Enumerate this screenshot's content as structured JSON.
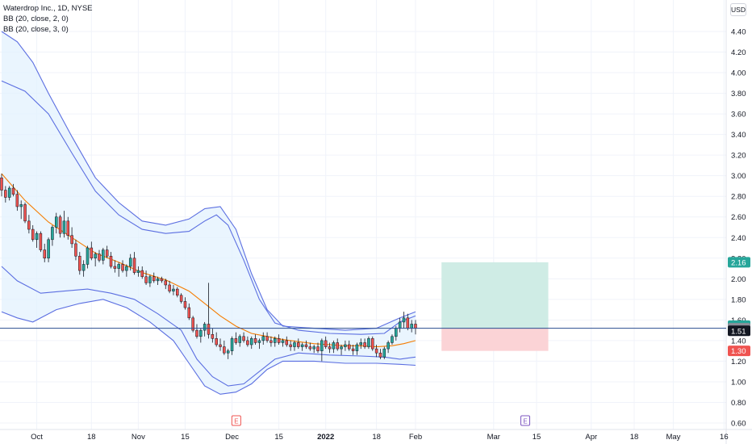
{
  "legend": {
    "title": "Waterdrop Inc., 1D, NYSE",
    "bb1": "BB (20, close, 2, 0)",
    "bb2": "BB (20, close, 3, 0)"
  },
  "currency": "USD",
  "colors": {
    "up": "#26a69a",
    "down": "#ef5350",
    "middle_band": "#f57c00",
    "outer_bands": "#5b6ee1",
    "band_fill": "#e3f2fd",
    "target_zone": "#cfece5",
    "stop_zone": "#fbd3d6",
    "crosshair": "#2a4d8f",
    "grid": "#f0f3fa"
  },
  "price_badges": [
    {
      "label": "2.16",
      "value": 2.16,
      "color": "#26a69a"
    },
    {
      "label": "1.52",
      "value": 1.545,
      "color": "#26a69a"
    },
    {
      "label": "1.52",
      "value": 1.52,
      "color": "#8c8f99"
    },
    {
      "label": "1.51",
      "value": 1.495,
      "color": "#131722"
    },
    {
      "label": "1.30",
      "value": 1.3,
      "color": "#ef5350"
    }
  ],
  "event_markers": [
    {
      "label": "E",
      "date_index": 60,
      "style": "red"
    },
    {
      "label": "E",
      "date_index": 134,
      "style": "purple"
    }
  ],
  "chart_data": {
    "type": "candlestick",
    "title": "Waterdrop Inc., 1D, NYSE",
    "ylim": [
      0.6,
      4.6
    ],
    "y_ticks": [
      "0.60",
      "0.80",
      "1.00",
      "1.20",
      "1.40",
      "1.60",
      "1.80",
      "2.00",
      "2.20",
      "2.40",
      "2.60",
      "2.80",
      "3.00",
      "3.20",
      "3.40",
      "3.60",
      "3.80",
      "4.00",
      "4.20",
      "4.40"
    ],
    "x_ticks": [
      {
        "label": "Oct",
        "index": 9
      },
      {
        "label": "18",
        "index": 23
      },
      {
        "label": "Nov",
        "index": 35
      },
      {
        "label": "15",
        "index": 47
      },
      {
        "label": "Dec",
        "index": 59
      },
      {
        "label": "15",
        "index": 71
      },
      {
        "label": "2022",
        "index": 83
      },
      {
        "label": "18",
        "index": 96
      },
      {
        "label": "Feb",
        "index": 106
      },
      {
        "label": "Mar",
        "index": 126
      },
      {
        "label": "15",
        "index": 137
      },
      {
        "label": "Apr",
        "index": 151
      },
      {
        "label": "18",
        "index": 162
      },
      {
        "label": "May",
        "index": 172
      },
      {
        "label": "16",
        "index": 185
      }
    ],
    "last_price": 1.52,
    "position": {
      "entry": 1.52,
      "target": 2.16,
      "stop": 1.3,
      "start_index": 111,
      "end_index": 140
    },
    "ohlc": [
      [
        0,
        2.98,
        3.02,
        2.8,
        2.86
      ],
      [
        1,
        2.86,
        2.9,
        2.74,
        2.79
      ],
      [
        2,
        2.79,
        2.9,
        2.76,
        2.88
      ],
      [
        3,
        2.88,
        2.92,
        2.8,
        2.82
      ],
      [
        4,
        2.82,
        2.86,
        2.66,
        2.7
      ],
      [
        5,
        2.7,
        2.76,
        2.58,
        2.72
      ],
      [
        6,
        2.72,
        2.74,
        2.54,
        2.56
      ],
      [
        7,
        2.56,
        2.62,
        2.44,
        2.48
      ],
      [
        8,
        2.48,
        2.52,
        2.36,
        2.38
      ],
      [
        9,
        2.38,
        2.46,
        2.3,
        2.44
      ],
      [
        10,
        2.44,
        2.46,
        2.26,
        2.28
      ],
      [
        11,
        2.28,
        2.34,
        2.16,
        2.2
      ],
      [
        12,
        2.2,
        2.4,
        2.16,
        2.38
      ],
      [
        13,
        2.38,
        2.52,
        2.32,
        2.5
      ],
      [
        14,
        2.5,
        2.64,
        2.44,
        2.6
      ],
      [
        15,
        2.6,
        2.62,
        2.4,
        2.44
      ],
      [
        16,
        2.44,
        2.66,
        2.4,
        2.56
      ],
      [
        17,
        2.56,
        2.6,
        2.38,
        2.42
      ],
      [
        18,
        2.42,
        2.5,
        2.3,
        2.34
      ],
      [
        19,
        2.34,
        2.38,
        2.18,
        2.22
      ],
      [
        20,
        2.22,
        2.26,
        2.04,
        2.08
      ],
      [
        21,
        2.08,
        2.18,
        2.02,
        2.14
      ],
      [
        22,
        2.14,
        2.32,
        2.1,
        2.3
      ],
      [
        23,
        2.3,
        2.36,
        2.18,
        2.2
      ],
      [
        24,
        2.2,
        2.26,
        2.12,
        2.24
      ],
      [
        25,
        2.24,
        2.28,
        2.16,
        2.18
      ],
      [
        26,
        2.18,
        2.3,
        2.14,
        2.28
      ],
      [
        27,
        2.28,
        2.32,
        2.2,
        2.22
      ],
      [
        28,
        2.22,
        2.26,
        2.1,
        2.12
      ],
      [
        29,
        2.12,
        2.18,
        2.06,
        2.1
      ],
      [
        30,
        2.1,
        2.16,
        2.02,
        2.14
      ],
      [
        31,
        2.14,
        2.18,
        2.06,
        2.08
      ],
      [
        32,
        2.08,
        2.14,
        2.02,
        2.12
      ],
      [
        33,
        2.12,
        2.24,
        2.08,
        2.2
      ],
      [
        34,
        2.2,
        2.26,
        2.04,
        2.06
      ],
      [
        35,
        2.06,
        2.12,
        2.02,
        2.08
      ],
      [
        36,
        2.08,
        2.12,
        2.0,
        2.02
      ],
      [
        37,
        2.02,
        2.08,
        1.94,
        1.96
      ],
      [
        38,
        1.96,
        2.04,
        1.92,
        2.02
      ],
      [
        39,
        2.02,
        2.06,
        1.96,
        1.98
      ],
      [
        40,
        1.98,
        2.02,
        1.94,
        2.0
      ],
      [
        41,
        2.0,
        2.02,
        1.96,
        1.98
      ],
      [
        42,
        1.98,
        2.0,
        1.9,
        1.94
      ],
      [
        43,
        1.94,
        1.98,
        1.86,
        1.88
      ],
      [
        44,
        1.88,
        1.94,
        1.84,
        1.9
      ],
      [
        45,
        1.9,
        1.92,
        1.82,
        1.84
      ],
      [
        46,
        1.84,
        1.86,
        1.76,
        1.78
      ],
      [
        47,
        1.78,
        1.82,
        1.7,
        1.72
      ],
      [
        48,
        1.72,
        1.76,
        1.6,
        1.62
      ],
      [
        49,
        1.62,
        1.64,
        1.48,
        1.5
      ],
      [
        50,
        1.5,
        1.56,
        1.42,
        1.44
      ],
      [
        51,
        1.44,
        1.52,
        1.38,
        1.5
      ],
      [
        52,
        1.5,
        1.58,
        1.44,
        1.56
      ],
      [
        53,
        1.56,
        1.96,
        1.42,
        1.46
      ],
      [
        54,
        1.46,
        1.52,
        1.38,
        1.42
      ],
      [
        55,
        1.42,
        1.48,
        1.34,
        1.36
      ],
      [
        56,
        1.36,
        1.42,
        1.3,
        1.34
      ],
      [
        57,
        1.34,
        1.4,
        1.26,
        1.28
      ],
      [
        58,
        1.28,
        1.32,
        1.22,
        1.3
      ],
      [
        59,
        1.3,
        1.44,
        1.26,
        1.42
      ],
      [
        60,
        1.42,
        1.48,
        1.36,
        1.38
      ],
      [
        61,
        1.38,
        1.46,
        1.34,
        1.44
      ],
      [
        62,
        1.44,
        1.48,
        1.38,
        1.4
      ],
      [
        63,
        1.4,
        1.44,
        1.34,
        1.36
      ],
      [
        64,
        1.36,
        1.44,
        1.32,
        1.42
      ],
      [
        65,
        1.42,
        1.46,
        1.36,
        1.38
      ],
      [
        66,
        1.38,
        1.42,
        1.32,
        1.4
      ],
      [
        67,
        1.4,
        1.48,
        1.36,
        1.44
      ],
      [
        68,
        1.44,
        1.48,
        1.38,
        1.4
      ],
      [
        69,
        1.4,
        1.44,
        1.34,
        1.38
      ],
      [
        70,
        1.38,
        1.44,
        1.34,
        1.42
      ],
      [
        71,
        1.42,
        1.46,
        1.36,
        1.38
      ],
      [
        72,
        1.38,
        1.42,
        1.34,
        1.4
      ],
      [
        73,
        1.4,
        1.44,
        1.34,
        1.36
      ],
      [
        74,
        1.36,
        1.4,
        1.3,
        1.34
      ],
      [
        75,
        1.34,
        1.4,
        1.3,
        1.38
      ],
      [
        76,
        1.38,
        1.42,
        1.32,
        1.34
      ],
      [
        77,
        1.34,
        1.38,
        1.3,
        1.36
      ],
      [
        78,
        1.36,
        1.4,
        1.32,
        1.34
      ],
      [
        79,
        1.34,
        1.38,
        1.3,
        1.32
      ],
      [
        80,
        1.32,
        1.36,
        1.28,
        1.34
      ],
      [
        81,
        1.34,
        1.38,
        1.28,
        1.3
      ],
      [
        82,
        1.3,
        1.42,
        1.2,
        1.4
      ],
      [
        83,
        1.4,
        1.44,
        1.32,
        1.34
      ],
      [
        84,
        1.34,
        1.38,
        1.28,
        1.32
      ],
      [
        85,
        1.32,
        1.4,
        1.28,
        1.38
      ],
      [
        86,
        1.38,
        1.42,
        1.3,
        1.32
      ],
      [
        87,
        1.32,
        1.36,
        1.26,
        1.34
      ],
      [
        88,
        1.34,
        1.4,
        1.3,
        1.36
      ],
      [
        89,
        1.36,
        1.4,
        1.3,
        1.32
      ],
      [
        90,
        1.32,
        1.36,
        1.26,
        1.3
      ],
      [
        91,
        1.3,
        1.38,
        1.26,
        1.36
      ],
      [
        92,
        1.36,
        1.42,
        1.32,
        1.38
      ],
      [
        93,
        1.38,
        1.42,
        1.32,
        1.34
      ],
      [
        94,
        1.34,
        1.44,
        1.32,
        1.42
      ],
      [
        95,
        1.42,
        1.44,
        1.3,
        1.32
      ],
      [
        96,
        1.32,
        1.36,
        1.24,
        1.28
      ],
      [
        97,
        1.28,
        1.32,
        1.22,
        1.24
      ],
      [
        98,
        1.24,
        1.34,
        1.22,
        1.32
      ],
      [
        99,
        1.32,
        1.4,
        1.28,
        1.38
      ],
      [
        100,
        1.38,
        1.46,
        1.36,
        1.44
      ],
      [
        101,
        1.44,
        1.54,
        1.4,
        1.52
      ],
      [
        102,
        1.52,
        1.62,
        1.48,
        1.58
      ],
      [
        103,
        1.58,
        1.68,
        1.52,
        1.62
      ],
      [
        104,
        1.62,
        1.66,
        1.5,
        1.52
      ],
      [
        105,
        1.52,
        1.6,
        1.48,
        1.56
      ],
      [
        106,
        1.56,
        1.6,
        1.46,
        1.52
      ]
    ],
    "bb_mid": [
      [
        0,
        3.02
      ],
      [
        6,
        2.76
      ],
      [
        12,
        2.55
      ],
      [
        18,
        2.4
      ],
      [
        24,
        2.25
      ],
      [
        30,
        2.16
      ],
      [
        36,
        2.06
      ],
      [
        42,
        1.99
      ],
      [
        48,
        1.88
      ],
      [
        52,
        1.76
      ],
      [
        56,
        1.64
      ],
      [
        60,
        1.54
      ],
      [
        64,
        1.47
      ],
      [
        68,
        1.44
      ],
      [
        72,
        1.41
      ],
      [
        76,
        1.39
      ],
      [
        80,
        1.37
      ],
      [
        84,
        1.36
      ],
      [
        88,
        1.35
      ],
      [
        92,
        1.35
      ],
      [
        96,
        1.34
      ],
      [
        100,
        1.35
      ],
      [
        103,
        1.37
      ],
      [
        106,
        1.4
      ]
    ],
    "bb_upper2": [
      [
        0,
        3.92
      ],
      [
        6,
        3.82
      ],
      [
        12,
        3.6
      ],
      [
        18,
        3.22
      ],
      [
        24,
        2.85
      ],
      [
        30,
        2.62
      ],
      [
        36,
        2.48
      ],
      [
        42,
        2.44
      ],
      [
        48,
        2.46
      ],
      [
        52,
        2.56
      ],
      [
        55,
        2.62
      ],
      [
        58,
        2.52
      ],
      [
        62,
        2.18
      ],
      [
        66,
        1.8
      ],
      [
        70,
        1.57
      ],
      [
        76,
        1.5
      ],
      [
        84,
        1.47
      ],
      [
        92,
        1.46
      ],
      [
        98,
        1.47
      ],
      [
        102,
        1.58
      ],
      [
        106,
        1.64
      ]
    ],
    "bb_lower2": [
      [
        0,
        2.12
      ],
      [
        4,
        1.98
      ],
      [
        10,
        1.86
      ],
      [
        16,
        1.88
      ],
      [
        22,
        1.9
      ],
      [
        28,
        1.86
      ],
      [
        34,
        1.8
      ],
      [
        40,
        1.66
      ],
      [
        46,
        1.5
      ],
      [
        50,
        1.22
      ],
      [
        54,
        1.05
      ],
      [
        58,
        0.96
      ],
      [
        62,
        0.98
      ],
      [
        66,
        1.1
      ],
      [
        70,
        1.22
      ],
      [
        76,
        1.28
      ],
      [
        84,
        1.26
      ],
      [
        92,
        1.25
      ],
      [
        98,
        1.24
      ],
      [
        102,
        1.22
      ],
      [
        106,
        1.24
      ]
    ],
    "bb_upper3": [
      [
        0,
        4.4
      ],
      [
        4,
        4.3
      ],
      [
        8,
        4.1
      ],
      [
        12,
        3.8
      ],
      [
        18,
        3.38
      ],
      [
        24,
        2.98
      ],
      [
        30,
        2.74
      ],
      [
        36,
        2.56
      ],
      [
        42,
        2.52
      ],
      [
        48,
        2.58
      ],
      [
        52,
        2.68
      ],
      [
        56,
        2.7
      ],
      [
        60,
        2.48
      ],
      [
        64,
        2.05
      ],
      [
        68,
        1.7
      ],
      [
        72,
        1.54
      ],
      [
        80,
        1.52
      ],
      [
        88,
        1.5
      ],
      [
        96,
        1.52
      ],
      [
        102,
        1.62
      ],
      [
        106,
        1.68
      ]
    ],
    "bb_lower3": [
      [
        0,
        1.68
      ],
      [
        4,
        1.62
      ],
      [
        8,
        1.58
      ],
      [
        14,
        1.7
      ],
      [
        20,
        1.76
      ],
      [
        26,
        1.8
      ],
      [
        32,
        1.72
      ],
      [
        38,
        1.58
      ],
      [
        44,
        1.4
      ],
      [
        48,
        1.18
      ],
      [
        52,
        0.96
      ],
      [
        56,
        0.88
      ],
      [
        60,
        0.9
      ],
      [
        64,
        0.98
      ],
      [
        68,
        1.12
      ],
      [
        72,
        1.2
      ],
      [
        80,
        1.2
      ],
      [
        88,
        1.18
      ],
      [
        96,
        1.18
      ],
      [
        102,
        1.17
      ],
      [
        106,
        1.16
      ]
    ]
  }
}
